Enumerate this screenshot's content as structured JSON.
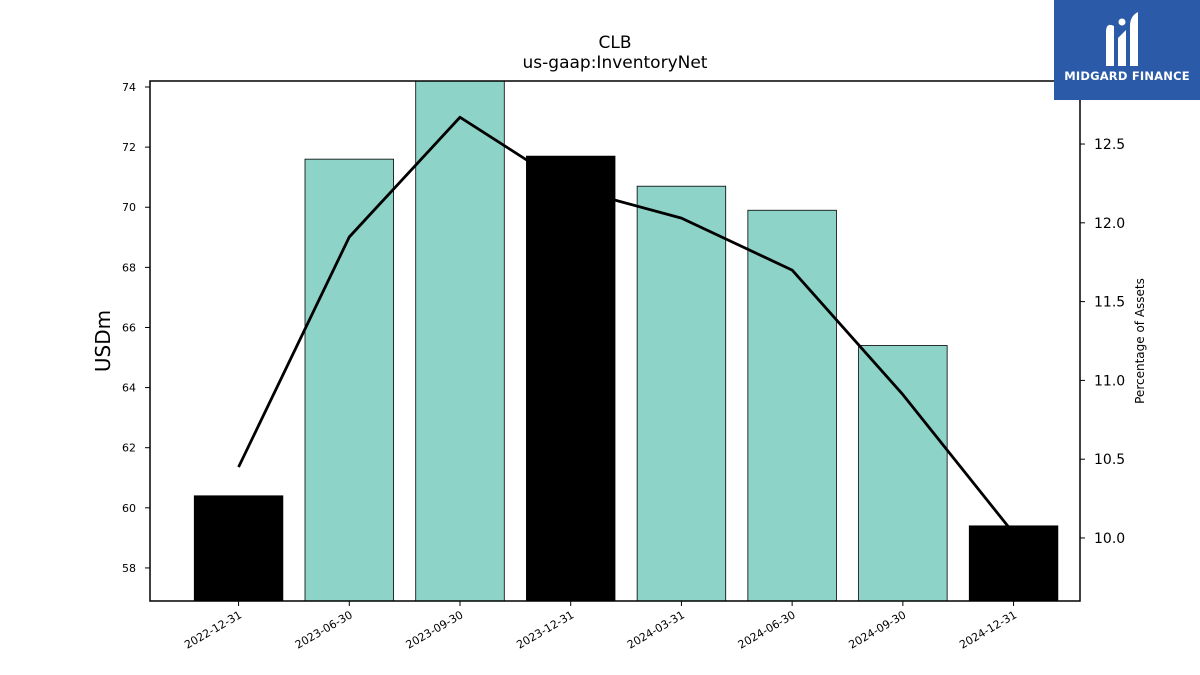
{
  "chart_data": {
    "type": "bar",
    "title": "CLB",
    "subtitle": "us-gaap:InventoryNet",
    "ylabel": "USDm",
    "y2label": "Percentage of Assets",
    "categories": [
      "2022-12-31",
      "2023-06-30",
      "2023-09-30",
      "2023-12-31",
      "2024-03-31",
      "2024-06-30",
      "2024-09-30",
      "2024-12-31"
    ],
    "series": [
      {
        "values": [
          60.4,
          71.6,
          74.2,
          71.7,
          70.7,
          69.9,
          65.4,
          59.4
        ],
        "colors": [
          "#000000",
          "#8dd3c7",
          "#8dd3c7",
          "#000000",
          "#8dd3c7",
          "#8dd3c7",
          "#8dd3c7",
          "#000000"
        ]
      },
      {
        "type": "line",
        "axis": "right",
        "color": "#000000",
        "values": [
          10.45,
          11.91,
          12.67,
          12.22,
          12.03,
          11.7,
          10.91,
          10.03
        ]
      }
    ],
    "ylim": [
      56.9,
      74.2
    ],
    "y2lim": [
      9.6,
      12.9
    ],
    "yticks": [
      58,
      60,
      62,
      64,
      66,
      68,
      70,
      72,
      74
    ],
    "y2ticks": [
      "10.0",
      "10.5",
      "11.0",
      "11.5",
      "12.0",
      "12.5"
    ],
    "grid": false
  },
  "logo": {
    "text": "MIDGARD FINANCE",
    "color": "#2a5aa8"
  }
}
